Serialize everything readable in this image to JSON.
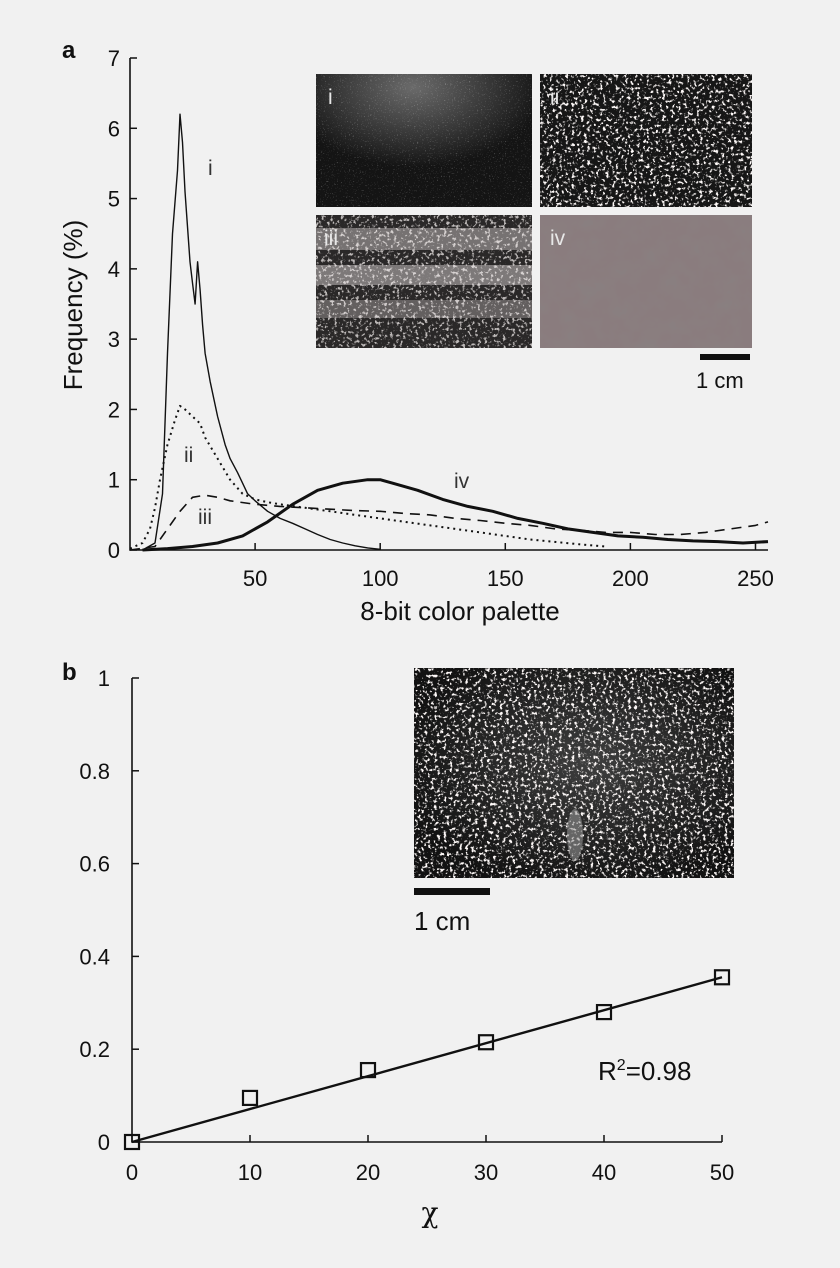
{
  "panel_a": {
    "label": "a",
    "inset_labels": [
      "i",
      "ii",
      "iii",
      "iv"
    ],
    "scale_label": "1 cm"
  },
  "panel_b": {
    "label": "b",
    "scale_label": "1 cm",
    "annotation_prefix": "R",
    "annotation_sup": "2",
    "annotation_suffix": "=0.98"
  },
  "colors": {
    "background": "#f1f1f1",
    "line": "#111111",
    "inset_dark": "#1b1b1b"
  },
  "chart_data": [
    {
      "type": "line",
      "xlabel": "8-bit color palette",
      "ylabel": "Frequency (%)",
      "xlim": [
        0,
        255
      ],
      "ylim": [
        0,
        7
      ],
      "xticks": [
        50,
        100,
        150,
        200,
        250
      ],
      "yticks": [
        0,
        1,
        2,
        3,
        4,
        5,
        6,
        7
      ],
      "grid": false,
      "series": [
        {
          "name": "i",
          "style": "solid-thin",
          "x": [
            5,
            10,
            13,
            15,
            17,
            19,
            20,
            21,
            22,
            23,
            24,
            25,
            26,
            27,
            28,
            29,
            30,
            32,
            35,
            38,
            40,
            43,
            45,
            47,
            50,
            55,
            60,
            65,
            70,
            75,
            80,
            85,
            90,
            95,
            100
          ],
          "y": [
            0,
            0.1,
            0.8,
            2.8,
            4.5,
            5.4,
            6.2,
            5.8,
            5.1,
            4.6,
            4.1,
            3.8,
            3.5,
            4.1,
            3.7,
            3.2,
            2.8,
            2.4,
            1.9,
            1.5,
            1.3,
            1.1,
            0.95,
            0.8,
            0.7,
            0.55,
            0.45,
            0.38,
            0.3,
            0.22,
            0.15,
            0.1,
            0.06,
            0.03,
            0.01
          ]
        },
        {
          "name": "ii",
          "style": "dotted",
          "x": [
            0,
            5,
            8,
            10,
            12,
            15,
            18,
            20,
            22,
            25,
            28,
            30,
            35,
            40,
            45,
            50,
            55,
            60,
            70,
            80,
            90,
            100,
            120,
            140,
            160,
            180,
            190
          ],
          "y": [
            0.02,
            0.1,
            0.3,
            0.6,
            1.0,
            1.5,
            1.85,
            2.05,
            2.0,
            1.9,
            1.8,
            1.6,
            1.3,
            1.0,
            0.8,
            0.72,
            0.68,
            0.65,
            0.6,
            0.55,
            0.5,
            0.45,
            0.35,
            0.25,
            0.15,
            0.08,
            0.05
          ]
        },
        {
          "name": "iii",
          "style": "dashed",
          "x": [
            0,
            10,
            15,
            20,
            25,
            30,
            35,
            40,
            50,
            60,
            70,
            80,
            90,
            100,
            110,
            120,
            130,
            140,
            150,
            160,
            170,
            180,
            190,
            200,
            210,
            220,
            230,
            240,
            250,
            255
          ],
          "y": [
            0,
            0.05,
            0.3,
            0.55,
            0.75,
            0.78,
            0.75,
            0.7,
            0.65,
            0.62,
            0.6,
            0.58,
            0.56,
            0.55,
            0.52,
            0.5,
            0.45,
            0.42,
            0.38,
            0.35,
            0.3,
            0.28,
            0.25,
            0.25,
            0.22,
            0.22,
            0.25,
            0.3,
            0.35,
            0.4
          ]
        },
        {
          "name": "iv",
          "style": "solid-thick",
          "x": [
            5,
            15,
            25,
            35,
            45,
            55,
            65,
            75,
            85,
            95,
            100,
            105,
            115,
            125,
            135,
            145,
            155,
            165,
            175,
            185,
            195,
            205,
            215,
            225,
            235,
            245,
            255
          ],
          "y": [
            0,
            0.02,
            0.05,
            0.1,
            0.2,
            0.4,
            0.65,
            0.85,
            0.95,
            1.0,
            1.0,
            0.95,
            0.85,
            0.72,
            0.62,
            0.55,
            0.45,
            0.38,
            0.3,
            0.25,
            0.2,
            0.18,
            0.15,
            0.13,
            0.12,
            0.1,
            0.12
          ]
        }
      ]
    },
    {
      "type": "scatter",
      "xlabel": "χ",
      "ylabel": "",
      "xlim": [
        0,
        50
      ],
      "ylim": [
        0,
        1
      ],
      "xticks": [
        0,
        10,
        20,
        30,
        40,
        50
      ],
      "yticks": [
        0,
        0.2,
        0.4,
        0.6,
        0.8,
        1
      ],
      "grid": false,
      "points": {
        "x": [
          0,
          10,
          20,
          30,
          40,
          50
        ],
        "y": [
          0,
          0.095,
          0.155,
          0.215,
          0.28,
          0.355
        ]
      },
      "fit": {
        "x": [
          0,
          50
        ],
        "y": [
          0,
          0.355
        ]
      }
    }
  ]
}
